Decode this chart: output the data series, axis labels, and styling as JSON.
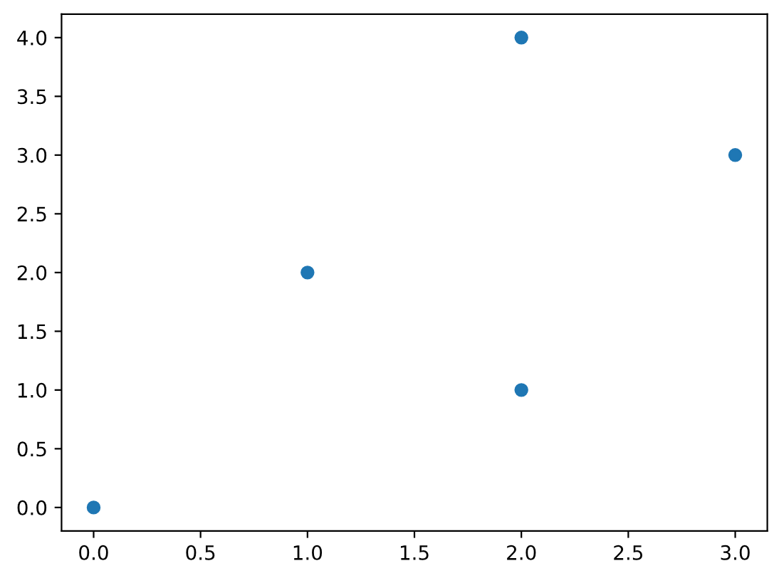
{
  "chart_data": {
    "type": "scatter",
    "x": [
      0,
      1,
      2,
      2,
      3
    ],
    "series": [
      {
        "color": "#1f77b4",
        "values": [
          0,
          2,
          4,
          1,
          3
        ]
      }
    ],
    "marker": "circle",
    "xlim": [
      -0.15,
      3.15
    ],
    "xticks": [
      {
        "value": 0,
        "label": "0.0"
      },
      0.5,
      {
        "value": 1,
        "label": "1.0"
      },
      1.5,
      {
        "value": 2,
        "label": "2.0"
      },
      2.5,
      {
        "value": 3,
        "label": "3.0"
      }
    ],
    "ylim": [
      -0.2,
      4.2
    ],
    "yticks": [
      {
        "value": 0,
        "label": "0.0"
      },
      0.5,
      {
        "value": 1,
        "label": "1.0"
      },
      1.5,
      {
        "value": 2,
        "label": "2.0"
      },
      2.5,
      {
        "value": 3,
        "label": "3.0"
      },
      3.5,
      {
        "value": 4,
        "label": "4.0"
      }
    ],
    "grid": false,
    "legend": false
  }
}
